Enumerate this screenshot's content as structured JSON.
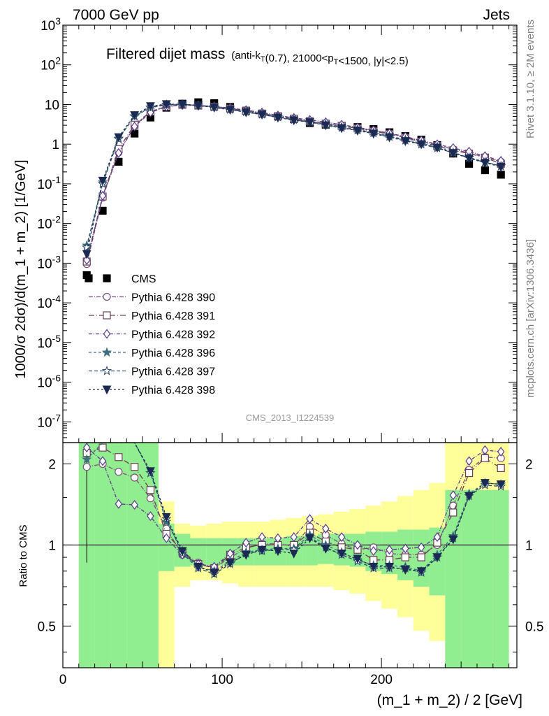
{
  "header": {
    "left": "7000 GeV pp",
    "right": "Jets"
  },
  "title": {
    "main": "Filtered dijet mass",
    "sub": "(anti-k_T(0.7), 21000<p_T<1500, |y|<2.5)"
  },
  "side_labels": {
    "rivet": "Rivet 3.1.10, ≥ 2M events",
    "mcplots": "mcplots.cern.ch [arXiv:1306.3436]"
  },
  "watermark": "CMS_2013_I1224539",
  "chart_data": [
    {
      "type": "scatter",
      "panel": "main",
      "ylabel": "1000/σ 2dσ)/d(m_1 + m_2) [1/GeV]",
      "yscale": "log",
      "ylim": [
        3e-08,
        1000
      ],
      "xlim": [
        0,
        285
      ],
      "y_ticks": [
        {
          "v": 1000,
          "b": "10",
          "e": "3"
        },
        {
          "v": 100,
          "b": "10",
          "e": "2"
        },
        {
          "v": 10,
          "b": "10",
          "e": ""
        },
        {
          "v": 1,
          "b": "1",
          "e": ""
        },
        {
          "v": 0.1,
          "b": "10",
          "e": "-1"
        },
        {
          "v": 0.01,
          "b": "10",
          "e": "-2"
        },
        {
          "v": 0.001,
          "b": "10",
          "e": "-3"
        },
        {
          "v": 0.0001,
          "b": "10",
          "e": "-4"
        },
        {
          "v": 1e-05,
          "b": "10",
          "e": "-5"
        },
        {
          "v": 1e-06,
          "b": "10",
          "e": "-6"
        },
        {
          "v": 1e-07,
          "b": "10",
          "e": "-7"
        }
      ],
      "x": [
        15,
        25,
        35,
        45,
        55,
        65,
        75,
        85,
        95,
        105,
        115,
        125,
        135,
        145,
        155,
        165,
        175,
        185,
        195,
        205,
        215,
        225,
        235,
        245,
        255,
        265,
        275
      ],
      "series": [
        {
          "name": "CMS",
          "color": "#000000",
          "marker": "square-filled",
          "dash": "none",
          "values": [
            0.0005,
            0.021,
            0.36,
            1.85,
            4.7,
            8.3,
            10.5,
            11.4,
            10.8,
            8.7,
            7.0,
            5.9,
            5.0,
            4.3,
            3.4,
            3.1,
            2.9,
            2.7,
            2.4,
            2.0,
            1.6,
            1.3,
            0.95,
            0.58,
            0.32,
            0.22,
            0.17
          ]
        },
        {
          "name": "Pythia 6.428 390",
          "color": "#7d4f7d",
          "marker": "circle-open",
          "dash": "6,2,1,2",
          "values": [
            0.00095,
            0.045,
            0.62,
            2.9,
            6.6,
            8.9,
            9.8,
            9.5,
            8.9,
            8.0,
            6.9,
            6.0,
            5.1,
            4.4,
            3.8,
            3.3,
            2.9,
            2.55,
            2.2,
            1.85,
            1.5,
            1.2,
            0.95,
            0.75,
            0.6,
            0.47,
            0.36
          ]
        },
        {
          "name": "Pythia 6.428 391",
          "color": "#6e3e54",
          "marker": "square-open",
          "dash": "8,3,1,3",
          "values": [
            0.0011,
            0.048,
            0.75,
            3.1,
            6.6,
            8.9,
            9.8,
            9.4,
            8.8,
            7.9,
            6.9,
            5.9,
            5.1,
            4.4,
            3.8,
            3.3,
            2.9,
            2.5,
            2.1,
            1.8,
            1.45,
            1.15,
            0.9,
            0.7,
            0.58,
            0.46,
            0.32
          ]
        },
        {
          "name": "Pythia 6.428 392",
          "color": "#5b3a8e",
          "marker": "diamond-open",
          "dash": "5,2,1,2",
          "values": [
            0.0012,
            0.05,
            0.6,
            2.8,
            6.3,
            8.8,
            9.7,
            9.4,
            9.0,
            8.2,
            7.2,
            6.3,
            5.3,
            4.6,
            4.1,
            3.6,
            3.1,
            2.65,
            2.25,
            1.9,
            1.55,
            1.25,
            1.0,
            0.8,
            0.65,
            0.5,
            0.38
          ]
        },
        {
          "name": "Pythia 6.428 396",
          "color": "#3f6f7f",
          "marker": "star-filled",
          "dash": "4,3",
          "values": [
            0.0028,
            0.11,
            1.4,
            5.0,
            8.3,
            9.8,
            10.1,
            9.5,
            8.7,
            7.6,
            6.6,
            5.7,
            4.9,
            4.2,
            3.7,
            3.2,
            2.7,
            2.35,
            1.95,
            1.6,
            1.3,
            1.05,
            0.87,
            0.62,
            0.46,
            0.36,
            0.28
          ]
        },
        {
          "name": "Pythia 6.428 397",
          "color": "#2f4f6f",
          "marker": "star-open",
          "dash": "5,3",
          "values": [
            0.0025,
            0.1,
            1.35,
            5.1,
            8.5,
            10.0,
            10.2,
            9.5,
            8.5,
            7.4,
            6.5,
            5.6,
            4.8,
            4.1,
            3.6,
            3.1,
            2.6,
            2.25,
            1.9,
            1.55,
            1.25,
            1.0,
            0.8,
            0.6,
            0.45,
            0.35,
            0.28
          ]
        },
        {
          "name": "Pythia 6.428 398",
          "color": "#1b2a52",
          "marker": "triangle-down-filled",
          "dash": "3,3",
          "values": [
            0.0017,
            0.12,
            1.5,
            5.4,
            9.1,
            10.2,
            10.1,
            9.4,
            8.4,
            7.4,
            6.4,
            5.6,
            4.7,
            4.0,
            3.6,
            3.0,
            2.55,
            2.2,
            1.85,
            1.5,
            1.2,
            1.0,
            0.82,
            0.6,
            0.44,
            0.34,
            0.27
          ]
        }
      ]
    },
    {
      "type": "line",
      "panel": "ratio",
      "ylabel": "Ratio to CMS",
      "xlabel": "(m_1 + m_2) / 2 [GeV]",
      "yscale": "log",
      "ylim": [
        0.35,
        2.4
      ],
      "xlim": [
        0,
        285
      ],
      "x_ticks": [
        0,
        100,
        200
      ],
      "y_ticks": [
        0.5,
        1,
        2
      ],
      "bins": [
        [
          10,
          20
        ],
        [
          20,
          30
        ],
        [
          30,
          40
        ],
        [
          40,
          50
        ],
        [
          50,
          60
        ],
        [
          60,
          70
        ],
        [
          70,
          80
        ],
        [
          80,
          90
        ],
        [
          90,
          100
        ],
        [
          100,
          110
        ],
        [
          110,
          120
        ],
        [
          120,
          130
        ],
        [
          130,
          140
        ],
        [
          140,
          150
        ],
        [
          150,
          160
        ],
        [
          160,
          170
        ],
        [
          170,
          180
        ],
        [
          180,
          190
        ],
        [
          190,
          200
        ],
        [
          200,
          210
        ],
        [
          210,
          220
        ],
        [
          220,
          230
        ],
        [
          230,
          240
        ],
        [
          240,
          250
        ],
        [
          250,
          260
        ],
        [
          260,
          270
        ],
        [
          270,
          280
        ]
      ],
      "band_inner": {
        "color": "#90ee90",
        "lo": [
          0.35,
          0.35,
          0.35,
          0.35,
          0.35,
          0.8,
          0.83,
          0.84,
          0.84,
          0.84,
          0.84,
          0.84,
          0.84,
          0.84,
          0.84,
          0.85,
          0.84,
          0.83,
          0.8,
          0.78,
          0.74,
          0.7,
          0.65,
          0.35,
          0.35,
          0.35,
          0.35
        ],
        "hi": [
          2.4,
          2.4,
          2.4,
          2.4,
          2.4,
          1.2,
          1.1,
          1.06,
          1.06,
          1.06,
          1.06,
          1.06,
          1.06,
          1.08,
          1.08,
          1.1,
          1.1,
          1.1,
          1.12,
          1.12,
          1.14,
          1.14,
          1.16,
          1.6,
          1.6,
          1.6,
          1.6
        ]
      },
      "band_outer": {
        "color": "#ffff99",
        "lo": [
          0.35,
          0.35,
          0.35,
          0.35,
          0.35,
          0.35,
          0.7,
          0.74,
          0.74,
          0.72,
          0.7,
          0.7,
          0.7,
          0.7,
          0.7,
          0.7,
          0.68,
          0.66,
          0.62,
          0.58,
          0.54,
          0.48,
          0.44,
          0.35,
          0.35,
          0.35,
          0.35
        ],
        "hi": [
          2.4,
          2.4,
          2.4,
          2.4,
          2.4,
          1.45,
          1.2,
          1.18,
          1.2,
          1.22,
          1.22,
          1.22,
          1.24,
          1.26,
          1.28,
          1.3,
          1.33,
          1.36,
          1.4,
          1.45,
          1.52,
          1.6,
          1.7,
          2.4,
          2.4,
          2.4,
          2.4
        ]
      },
      "x": [
        15,
        25,
        35,
        45,
        55,
        65,
        75,
        85,
        95,
        105,
        115,
        125,
        135,
        145,
        155,
        165,
        175,
        185,
        195,
        205,
        215,
        225,
        235,
        245,
        255,
        265,
        275
      ],
      "series": [
        {
          "name": "Pythia 6.428 390",
          "values": [
            1.95,
            2.0,
            1.87,
            1.78,
            1.49,
            1.15,
            0.92,
            0.86,
            0.82,
            0.9,
            0.97,
            1.01,
            1.01,
            0.99,
            1.17,
            1.09,
            1.01,
            0.96,
            0.98,
            0.93,
            0.92,
            0.92,
            1.0,
            1.4,
            1.9,
            2.12,
            2.1
          ]
        },
        {
          "name": "Pythia 6.428 391",
          "values": [
            2.2,
            2.3,
            2.12,
            1.95,
            1.6,
            1.1,
            0.95,
            0.85,
            0.82,
            0.92,
            0.98,
            1.0,
            1.0,
            1.0,
            1.11,
            1.03,
            0.98,
            0.96,
            0.88,
            0.88,
            0.9,
            0.9,
            1.02,
            1.32,
            1.85,
            2.1,
            1.93
          ]
        },
        {
          "name": "Pythia 6.428 392",
          "values": [
            2.3,
            2.05,
            1.42,
            1.41,
            1.28,
            1.06,
            0.92,
            0.85,
            0.83,
            0.93,
            1.02,
            1.07,
            1.06,
            1.07,
            1.25,
            1.15,
            1.07,
            1.0,
            0.95,
            0.96,
            0.97,
            0.98,
            1.07,
            1.53,
            2.05,
            2.25,
            2.22
          ]
        },
        {
          "name": "Pythia 6.428 396",
          "values": [
            2.08,
            2.4,
            2.4,
            2.4,
            1.85,
            1.22,
            0.95,
            0.83,
            0.8,
            0.87,
            0.94,
            0.96,
            0.97,
            0.97,
            1.09,
            1.0,
            0.94,
            0.88,
            0.84,
            0.84,
            0.83,
            0.8,
            0.92,
            1.08,
            1.55,
            1.7,
            1.68
          ]
        },
        {
          "name": "Pythia 6.428 397",
          "values": [
            2.4,
            2.4,
            2.4,
            2.4,
            1.85,
            1.25,
            0.93,
            0.82,
            0.78,
            0.85,
            0.93,
            0.95,
            0.96,
            0.96,
            1.07,
            0.98,
            0.92,
            0.87,
            0.82,
            0.82,
            0.82,
            0.79,
            0.9,
            1.06,
            1.52,
            1.67,
            1.65
          ]
        },
        {
          "name": "Pythia 6.428 398",
          "values": [
            2.4,
            2.4,
            2.4,
            2.4,
            1.88,
            1.27,
            0.95,
            0.83,
            0.79,
            0.86,
            0.92,
            0.96,
            0.95,
            0.93,
            1.06,
            0.97,
            0.93,
            0.89,
            0.83,
            0.83,
            0.81,
            0.8,
            0.9,
            1.05,
            1.52,
            1.7,
            1.68
          ]
        }
      ],
      "cms_err": {
        "x": 15,
        "lo": 0.86,
        "hi": 2.2
      }
    }
  ]
}
